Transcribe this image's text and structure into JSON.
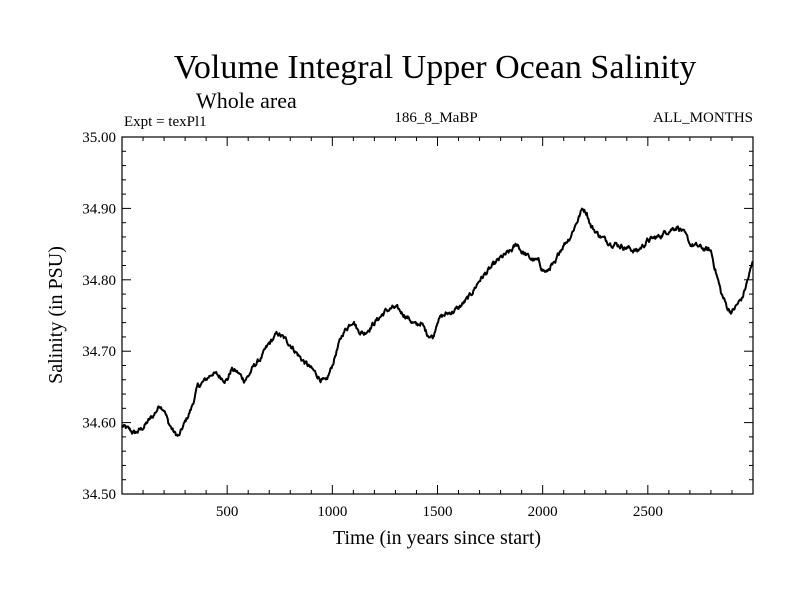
{
  "chart_data": {
    "type": "line",
    "title": "Volume Integral Upper Ocean Salinity",
    "subtitle": "Whole area",
    "left_label": "Expt = texPl1",
    "center_label": "186_8_MaBP",
    "right_label": "ALL_MONTHS",
    "xlabel": "Time (in years since start)",
    "ylabel": "Salinity (in PSU)",
    "xlim": [
      0,
      3000
    ],
    "ylim": [
      34.5,
      35.0
    ],
    "x_ticks": [
      500,
      1000,
      1500,
      2000,
      2500
    ],
    "x_tick_labels": [
      "500",
      "1000",
      "1500",
      "2000",
      "2500"
    ],
    "y_ticks": [
      34.5,
      34.6,
      34.7,
      34.8,
      34.9,
      35.0
    ],
    "y_tick_labels": [
      "34.50",
      "34.60",
      "34.70",
      "34.80",
      "34.90",
      "35.00"
    ],
    "grid": false,
    "series": [
      {
        "color": "#000000",
        "x": [
          0,
          30,
          60,
          90,
          120,
          150,
          180,
          200,
          220,
          250,
          270,
          300,
          330,
          360,
          400,
          430,
          460,
          500,
          520,
          550,
          580,
          600,
          630,
          660,
          700,
          740,
          760,
          800,
          850,
          900,
          950,
          970,
          1000,
          1020,
          1050,
          1100,
          1120,
          1150,
          1200,
          1250,
          1280,
          1300,
          1350,
          1400,
          1420,
          1450,
          1480,
          1500,
          1530,
          1600,
          1650,
          1700,
          1750,
          1800,
          1850,
          1880,
          1900,
          1940,
          1980,
          2000,
          2020,
          2040,
          2060,
          2080,
          2100,
          2130,
          2160,
          2190,
          2210,
          2230,
          2260,
          2300,
          2350,
          2400,
          2450,
          2500,
          2550,
          2600,
          2640,
          2660,
          2700,
          2750,
          2800,
          2850,
          2880,
          2900,
          2950,
          3000
        ],
        "y": [
          34.595,
          34.59,
          34.585,
          34.59,
          34.6,
          34.61,
          34.625,
          34.62,
          34.6,
          34.585,
          34.58,
          34.6,
          34.62,
          34.65,
          34.66,
          34.67,
          34.665,
          34.66,
          34.675,
          34.67,
          34.66,
          34.665,
          34.68,
          34.69,
          34.71,
          34.725,
          34.72,
          34.71,
          34.69,
          34.675,
          34.66,
          34.655,
          34.68,
          34.7,
          34.725,
          34.745,
          34.73,
          34.725,
          34.74,
          34.755,
          34.76,
          34.76,
          34.75,
          34.735,
          34.74,
          34.725,
          34.72,
          34.745,
          34.75,
          34.76,
          34.775,
          34.8,
          34.815,
          34.83,
          34.84,
          34.85,
          34.84,
          34.83,
          34.825,
          34.815,
          34.81,
          34.82,
          34.82,
          34.84,
          34.85,
          34.86,
          34.88,
          34.9,
          34.895,
          34.875,
          34.865,
          34.855,
          34.85,
          34.845,
          34.84,
          34.855,
          34.86,
          34.87,
          34.875,
          34.87,
          34.85,
          34.845,
          34.84,
          34.78,
          34.76,
          34.755,
          34.775,
          34.825
        ]
      }
    ]
  }
}
